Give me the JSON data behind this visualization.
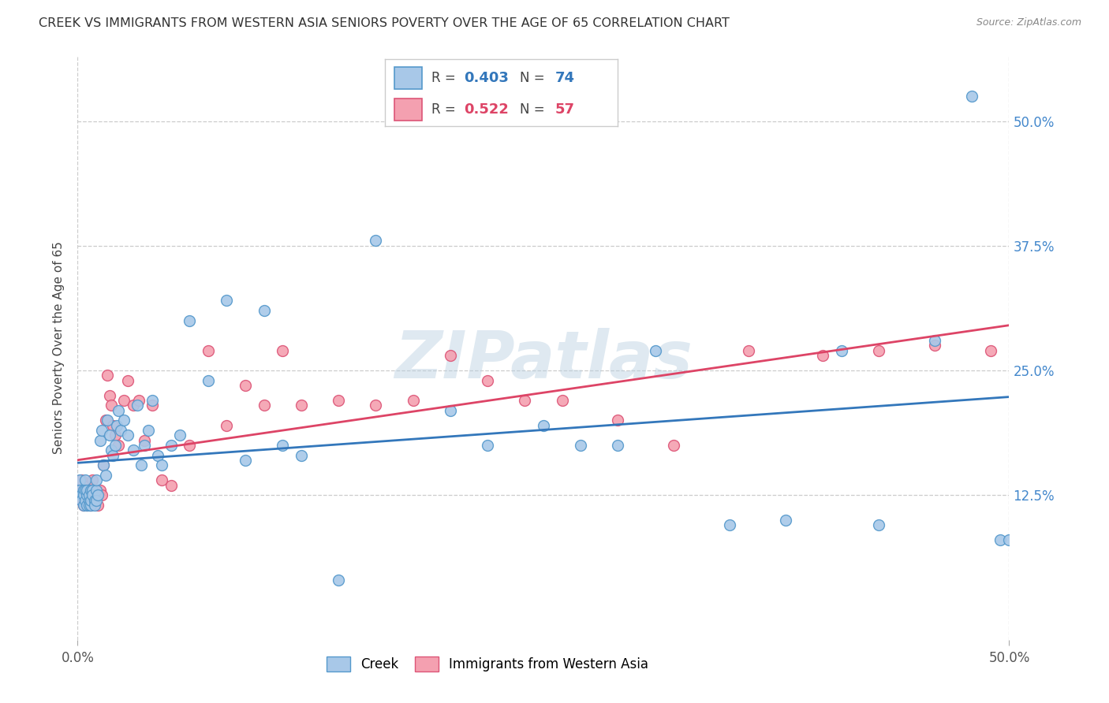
{
  "title": "CREEK VS IMMIGRANTS FROM WESTERN ASIA SENIORS POVERTY OVER THE AGE OF 65 CORRELATION CHART",
  "source": "Source: ZipAtlas.com",
  "ylabel": "Seniors Poverty Over the Age of 65",
  "ytick_labels": [
    "12.5%",
    "25.0%",
    "37.5%",
    "50.0%"
  ],
  "ytick_values": [
    0.125,
    0.25,
    0.375,
    0.5
  ],
  "xlim": [
    0.0,
    0.5
  ],
  "ylim": [
    -0.02,
    0.565
  ],
  "creek_color": "#a8c8e8",
  "immigrants_color": "#f4a0b0",
  "creek_edge_color": "#5599cc",
  "immigrants_edge_color": "#dd5577",
  "creek_line_color": "#3377bb",
  "immigrants_line_color": "#dd4466",
  "creek_R": 0.403,
  "creek_N": 74,
  "immigrants_R": 0.522,
  "immigrants_N": 57,
  "watermark": "ZIPatlas",
  "legend_label_creek": "Creek",
  "legend_label_immigrants": "Immigrants from Western Asia",
  "creek_x": [
    0.001,
    0.001,
    0.002,
    0.002,
    0.003,
    0.003,
    0.003,
    0.004,
    0.004,
    0.004,
    0.005,
    0.005,
    0.005,
    0.006,
    0.006,
    0.006,
    0.007,
    0.007,
    0.007,
    0.008,
    0.008,
    0.009,
    0.009,
    0.01,
    0.01,
    0.01,
    0.011,
    0.012,
    0.013,
    0.014,
    0.015,
    0.016,
    0.017,
    0.018,
    0.019,
    0.02,
    0.021,
    0.022,
    0.023,
    0.025,
    0.027,
    0.03,
    0.032,
    0.034,
    0.036,
    0.038,
    0.04,
    0.043,
    0.045,
    0.05,
    0.055,
    0.06,
    0.07,
    0.08,
    0.09,
    0.1,
    0.11,
    0.12,
    0.14,
    0.16,
    0.2,
    0.22,
    0.25,
    0.27,
    0.29,
    0.31,
    0.35,
    0.38,
    0.41,
    0.43,
    0.46,
    0.48,
    0.495,
    0.5
  ],
  "creek_y": [
    0.14,
    0.13,
    0.125,
    0.12,
    0.13,
    0.115,
    0.125,
    0.14,
    0.12,
    0.13,
    0.125,
    0.115,
    0.13,
    0.12,
    0.115,
    0.125,
    0.13,
    0.115,
    0.12,
    0.13,
    0.125,
    0.12,
    0.115,
    0.13,
    0.12,
    0.14,
    0.125,
    0.18,
    0.19,
    0.155,
    0.145,
    0.2,
    0.185,
    0.17,
    0.165,
    0.175,
    0.195,
    0.21,
    0.19,
    0.2,
    0.185,
    0.17,
    0.215,
    0.155,
    0.175,
    0.19,
    0.22,
    0.165,
    0.155,
    0.175,
    0.185,
    0.3,
    0.24,
    0.32,
    0.16,
    0.31,
    0.175,
    0.165,
    0.04,
    0.38,
    0.21,
    0.175,
    0.195,
    0.175,
    0.175,
    0.27,
    0.095,
    0.1,
    0.27,
    0.095,
    0.28,
    0.525,
    0.08,
    0.08
  ],
  "immigrants_x": [
    0.001,
    0.002,
    0.002,
    0.003,
    0.003,
    0.004,
    0.004,
    0.005,
    0.005,
    0.006,
    0.006,
    0.007,
    0.007,
    0.008,
    0.008,
    0.009,
    0.01,
    0.011,
    0.012,
    0.013,
    0.014,
    0.015,
    0.016,
    0.017,
    0.018,
    0.019,
    0.02,
    0.022,
    0.025,
    0.027,
    0.03,
    0.033,
    0.036,
    0.04,
    0.045,
    0.05,
    0.06,
    0.07,
    0.08,
    0.09,
    0.1,
    0.11,
    0.12,
    0.14,
    0.16,
    0.18,
    0.2,
    0.22,
    0.24,
    0.26,
    0.29,
    0.32,
    0.36,
    0.4,
    0.43,
    0.46,
    0.49
  ],
  "immigrants_y": [
    0.13,
    0.12,
    0.14,
    0.115,
    0.13,
    0.125,
    0.12,
    0.13,
    0.115,
    0.12,
    0.135,
    0.13,
    0.115,
    0.14,
    0.12,
    0.13,
    0.125,
    0.115,
    0.13,
    0.125,
    0.155,
    0.2,
    0.245,
    0.225,
    0.215,
    0.195,
    0.185,
    0.175,
    0.22,
    0.24,
    0.215,
    0.22,
    0.18,
    0.215,
    0.14,
    0.135,
    0.175,
    0.27,
    0.195,
    0.235,
    0.215,
    0.27,
    0.215,
    0.22,
    0.215,
    0.22,
    0.265,
    0.24,
    0.22,
    0.22,
    0.2,
    0.175,
    0.27,
    0.265,
    0.27,
    0.275,
    0.27
  ]
}
